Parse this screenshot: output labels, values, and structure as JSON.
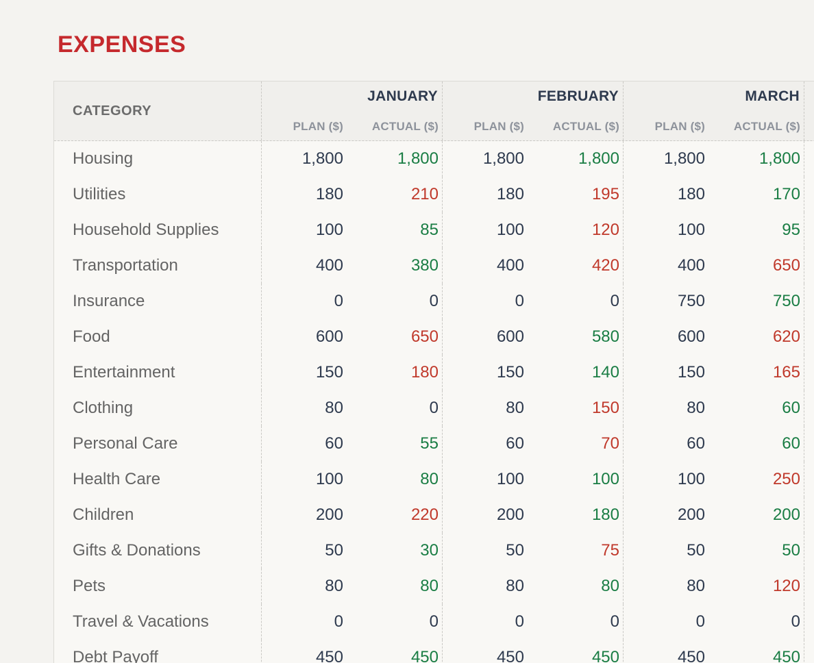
{
  "page": {
    "title": "EXPENSES"
  },
  "colors": {
    "title": "#c5292d",
    "header_month": "#2e3a4e",
    "header_sub": "#8d929b",
    "category_header_text": "#6b6b6b",
    "category_text": "#646464",
    "plan_text": "#2e3a4e",
    "actual_under": "#1a7d44",
    "actual_over": "#c0392b",
    "actual_neutral": "#2e3a4e",
    "bg_page": "#f4f3f0",
    "bg_header": "#f0efec",
    "bg_body": "#f9f8f5",
    "border_solid": "#dbdad6",
    "border_dash": "#c9c8c4"
  },
  "table": {
    "category_header": "CATEGORY",
    "months": [
      "JANUARY",
      "FEBRUARY",
      "MARCH"
    ],
    "sub_headers": {
      "plan": "PLAN ($)",
      "actual": "ACTUAL ($)"
    },
    "rows": [
      {
        "category": "Housing",
        "cells": [
          {
            "plan": "1,800",
            "actual": "1,800",
            "status": "under"
          },
          {
            "plan": "1,800",
            "actual": "1,800",
            "status": "under"
          },
          {
            "plan": "1,800",
            "actual": "1,800",
            "status": "under"
          }
        ]
      },
      {
        "category": "Utilities",
        "cells": [
          {
            "plan": "180",
            "actual": "210",
            "status": "over"
          },
          {
            "plan": "180",
            "actual": "195",
            "status": "over"
          },
          {
            "plan": "180",
            "actual": "170",
            "status": "under"
          }
        ]
      },
      {
        "category": "Household Supplies",
        "cells": [
          {
            "plan": "100",
            "actual": "85",
            "status": "under"
          },
          {
            "plan": "100",
            "actual": "120",
            "status": "over"
          },
          {
            "plan": "100",
            "actual": "95",
            "status": "under"
          }
        ]
      },
      {
        "category": "Transportation",
        "cells": [
          {
            "plan": "400",
            "actual": "380",
            "status": "under"
          },
          {
            "plan": "400",
            "actual": "420",
            "status": "over"
          },
          {
            "plan": "400",
            "actual": "650",
            "status": "over"
          }
        ]
      },
      {
        "category": "Insurance",
        "cells": [
          {
            "plan": "0",
            "actual": "0",
            "status": "neutral"
          },
          {
            "plan": "0",
            "actual": "0",
            "status": "neutral"
          },
          {
            "plan": "750",
            "actual": "750",
            "status": "under"
          }
        ]
      },
      {
        "category": "Food",
        "cells": [
          {
            "plan": "600",
            "actual": "650",
            "status": "over"
          },
          {
            "plan": "600",
            "actual": "580",
            "status": "under"
          },
          {
            "plan": "600",
            "actual": "620",
            "status": "over"
          }
        ]
      },
      {
        "category": "Entertainment",
        "cells": [
          {
            "plan": "150",
            "actual": "180",
            "status": "over"
          },
          {
            "plan": "150",
            "actual": "140",
            "status": "under"
          },
          {
            "plan": "150",
            "actual": "165",
            "status": "over"
          }
        ]
      },
      {
        "category": "Clothing",
        "cells": [
          {
            "plan": "80",
            "actual": "0",
            "status": "neutral"
          },
          {
            "plan": "80",
            "actual": "150",
            "status": "over"
          },
          {
            "plan": "80",
            "actual": "60",
            "status": "under"
          }
        ]
      },
      {
        "category": "Personal Care",
        "cells": [
          {
            "plan": "60",
            "actual": "55",
            "status": "under"
          },
          {
            "plan": "60",
            "actual": "70",
            "status": "over"
          },
          {
            "plan": "60",
            "actual": "60",
            "status": "under"
          }
        ]
      },
      {
        "category": "Health Care",
        "cells": [
          {
            "plan": "100",
            "actual": "80",
            "status": "under"
          },
          {
            "plan": "100",
            "actual": "100",
            "status": "under"
          },
          {
            "plan": "100",
            "actual": "250",
            "status": "over"
          }
        ]
      },
      {
        "category": "Children",
        "cells": [
          {
            "plan": "200",
            "actual": "220",
            "status": "over"
          },
          {
            "plan": "200",
            "actual": "180",
            "status": "under"
          },
          {
            "plan": "200",
            "actual": "200",
            "status": "under"
          }
        ]
      },
      {
        "category": "Gifts & Donations",
        "cells": [
          {
            "plan": "50",
            "actual": "30",
            "status": "under"
          },
          {
            "plan": "50",
            "actual": "75",
            "status": "over"
          },
          {
            "plan": "50",
            "actual": "50",
            "status": "under"
          }
        ]
      },
      {
        "category": "Pets",
        "cells": [
          {
            "plan": "80",
            "actual": "80",
            "status": "under"
          },
          {
            "plan": "80",
            "actual": "80",
            "status": "under"
          },
          {
            "plan": "80",
            "actual": "120",
            "status": "over"
          }
        ]
      },
      {
        "category": "Travel & Vacations",
        "cells": [
          {
            "plan": "0",
            "actual": "0",
            "status": "neutral"
          },
          {
            "plan": "0",
            "actual": "0",
            "status": "neutral"
          },
          {
            "plan": "0",
            "actual": "0",
            "status": "neutral"
          }
        ]
      },
      {
        "category": "Debt Payoff",
        "cells": [
          {
            "plan": "450",
            "actual": "450",
            "status": "under"
          },
          {
            "plan": "450",
            "actual": "450",
            "status": "under"
          },
          {
            "plan": "450",
            "actual": "450",
            "status": "under"
          }
        ]
      }
    ]
  }
}
